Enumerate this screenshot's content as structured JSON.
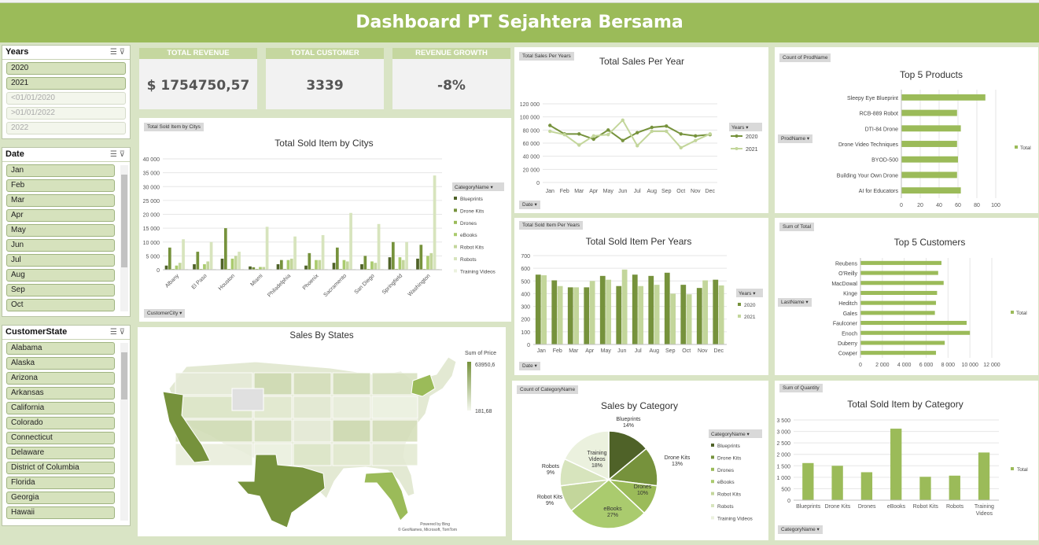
{
  "title": "Dashboard PT Sejahtera Bersama",
  "colors": {
    "header": "#9bbb59",
    "dark": "#76923c",
    "mid": "#9bbb59",
    "light": "#c3d69b",
    "pale": "#d7e4bd"
  },
  "slicers": {
    "years": {
      "title": "Years",
      "items": [
        {
          "label": "2020",
          "dim": false
        },
        {
          "label": "2021",
          "dim": false
        },
        {
          "label": "<01/01/2020",
          "dim": true
        },
        {
          "label": ">01/01/2022",
          "dim": true
        },
        {
          "label": "2022",
          "dim": true
        }
      ]
    },
    "date": {
      "title": "Date",
      "items": [
        "Jan",
        "Feb",
        "Mar",
        "Apr",
        "May",
        "Jun",
        "Jul",
        "Aug",
        "Sep",
        "Oct"
      ]
    },
    "state": {
      "title": "CustomerState",
      "items": [
        "Alabama",
        "Alaska",
        "Arizona",
        "Arkansas",
        "California",
        "Colorado",
        "Connecticut",
        "Delaware",
        "District of Columbia",
        "Florida",
        "Georgia",
        "Hawaii"
      ]
    }
  },
  "kpis": [
    {
      "label": "TOTAL REVENUE",
      "value": "$ 1754750,57"
    },
    {
      "label": "TOTAL CUSTOMER",
      "value": "3339"
    },
    {
      "label": "REVENUE GROWTH",
      "value": "-8%"
    }
  ],
  "tags": {
    "city": "Total Sold Item by Citys",
    "city_filter": "CustomerCity",
    "per_year": "Total Sales Per Years",
    "per_year_filter": "Date",
    "item_year": "Total Sold Item Per Years",
    "item_year_filter": "Date",
    "products": "Count of ProdName",
    "products_filter": "ProdName",
    "customers": "Sum of Total",
    "customers_filter": "LastName",
    "category_count": "Count of CategoryName",
    "qty": "Sum of Quantity",
    "qty_filter": "CategoryName"
  },
  "map": {
    "title": "Sales By States",
    "legend_title": "Sum of Price",
    "max": "63950,6",
    "min": "181,68",
    "credit1": "Powered by Bing",
    "credit2": "© GeoNames, Microsoft, TomTom"
  },
  "chart_data": [
    {
      "id": "city",
      "type": "bar",
      "title": "Total Sold Item by Citys",
      "categories": [
        "Albany",
        "El Paso",
        "Houston",
        "Miami",
        "Philadelphia",
        "Phoenix",
        "Sacramento",
        "San Diego",
        "Springfield",
        "Washington"
      ],
      "ylim": [
        0,
        40000
      ],
      "yticks": [
        0,
        5000,
        10000,
        15000,
        20000,
        25000,
        30000,
        35000,
        40000
      ],
      "legend_title": "CategoryName",
      "series": [
        {
          "name": "Blueprints",
          "values": [
            1500,
            2000,
            4000,
            1200,
            2000,
            1500,
            2500,
            2000,
            4500,
            4000
          ]
        },
        {
          "name": "Drone Kits",
          "values": [
            8000,
            6500,
            15000,
            900,
            3500,
            6000,
            8000,
            5000,
            10000,
            9000
          ]
        },
        {
          "name": "Drones",
          "values": [
            300,
            300,
            300,
            300,
            300,
            300,
            300,
            300,
            300,
            300
          ]
        },
        {
          "name": "eBooks",
          "values": [
            1500,
            2000,
            4000,
            1000,
            3500,
            3500,
            3500,
            3000,
            4500,
            5000
          ]
        },
        {
          "name": "Robot Kits",
          "values": [
            2500,
            3000,
            5000,
            1000,
            4000,
            3500,
            3000,
            2500,
            3500,
            6000
          ]
        },
        {
          "name": "Robots",
          "values": [
            11000,
            10000,
            6500,
            15500,
            12000,
            12500,
            20500,
            16500,
            10000,
            34000
          ]
        },
        {
          "name": "Training Videos",
          "values": [
            300,
            300,
            300,
            300,
            300,
            300,
            300,
            300,
            300,
            300
          ]
        }
      ]
    },
    {
      "id": "peryear",
      "type": "line",
      "title": "Total Sales Per Year",
      "categories": [
        "Jan",
        "Feb",
        "Mar",
        "Apr",
        "May",
        "Jun",
        "Jul",
        "Aug",
        "Sep",
        "Oct",
        "Nov",
        "Dec"
      ],
      "ylim": [
        0,
        120000
      ],
      "yticks": [
        0,
        20000,
        40000,
        60000,
        80000,
        100000,
        120000
      ],
      "legend_title": "Years",
      "series": [
        {
          "name": "2020",
          "values": [
            87000,
            74000,
            74000,
            66000,
            80000,
            64000,
            76000,
            84000,
            86000,
            74000,
            71000,
            73000
          ]
        },
        {
          "name": "2021",
          "values": [
            78000,
            73000,
            57000,
            71000,
            73000,
            95000,
            56000,
            78000,
            78000,
            53000,
            64000,
            74000
          ]
        }
      ]
    },
    {
      "id": "itemyear",
      "type": "bar",
      "title": "Total Sold Item Per Years",
      "categories": [
        "Jan",
        "Feb",
        "Mar",
        "Apr",
        "May",
        "Jun",
        "Jul",
        "Aug",
        "Sep",
        "Oct",
        "Nov",
        "Dec"
      ],
      "ylim": [
        0,
        700
      ],
      "yticks": [
        0,
        100,
        200,
        300,
        400,
        500,
        600,
        700
      ],
      "legend_title": "Years",
      "series": [
        {
          "name": "2020",
          "values": [
            550,
            505,
            450,
            450,
            540,
            460,
            550,
            540,
            565,
            470,
            445,
            510
          ]
        },
        {
          "name": "2021",
          "values": [
            545,
            460,
            450,
            500,
            510,
            590,
            460,
            470,
            400,
            395,
            505,
            465
          ]
        }
      ]
    },
    {
      "id": "products",
      "type": "bar",
      "title": "Top 5 Products",
      "categories": [
        "Sleepy Eye Blueprint",
        "RCB-889 Robot",
        "DTI-84 Drone",
        "Drone Video Techniques",
        "BYOD-500",
        "Building Your Own Drone",
        "AI for Educators"
      ],
      "xlim": [
        0,
        100
      ],
      "xticks": [
        0,
        20,
        40,
        60,
        80,
        100
      ],
      "legend": "Total",
      "values": [
        89,
        59,
        63,
        59,
        60,
        59,
        63
      ]
    },
    {
      "id": "customers",
      "type": "bar",
      "title": "Top 5 Customers",
      "categories": [
        "Reubens",
        "O'Reilly",
        "MacDowal",
        "Kinge",
        "Heditch",
        "Gales",
        "Faulconer",
        "Enoch",
        "Duberry",
        "Cowper"
      ],
      "xlim": [
        0,
        12000
      ],
      "xticks": [
        0,
        2000,
        4000,
        6000,
        8000,
        10000,
        12000
      ],
      "legend": "Total",
      "values": [
        7400,
        7100,
        7600,
        7000,
        6900,
        6800,
        9700,
        10000,
        7700,
        6900
      ]
    },
    {
      "id": "category",
      "type": "pie",
      "title": "Sales by Category",
      "categories": [
        "Blueprints",
        "Drone Kits",
        "Drones",
        "eBooks",
        "Robot Kits",
        "Robots",
        "Training Videos"
      ],
      "values": [
        14,
        13,
        10,
        27,
        9,
        9,
        18
      ],
      "labels": [
        "Blueprints\n14%",
        "Drone Kits\n13%",
        "Drones\n10%",
        "eBooks\n27%",
        "Robot Kits\n9%",
        "Robots\n9%",
        "Training\nVideos\n18%"
      ]
    },
    {
      "id": "qty",
      "type": "bar",
      "title": "Total Sold Item by Category",
      "categories": [
        "Blueprints",
        "Drone Kits",
        "Drones",
        "eBooks",
        "Robot Kits",
        "Robots",
        "Training Videos"
      ],
      "ylim": [
        0,
        3500
      ],
      "yticks": [
        0,
        500,
        1000,
        1500,
        2000,
        2500,
        3000,
        3500
      ],
      "legend": "Total",
      "values": [
        1620,
        1500,
        1220,
        3120,
        1020,
        1070,
        2080
      ]
    }
  ]
}
